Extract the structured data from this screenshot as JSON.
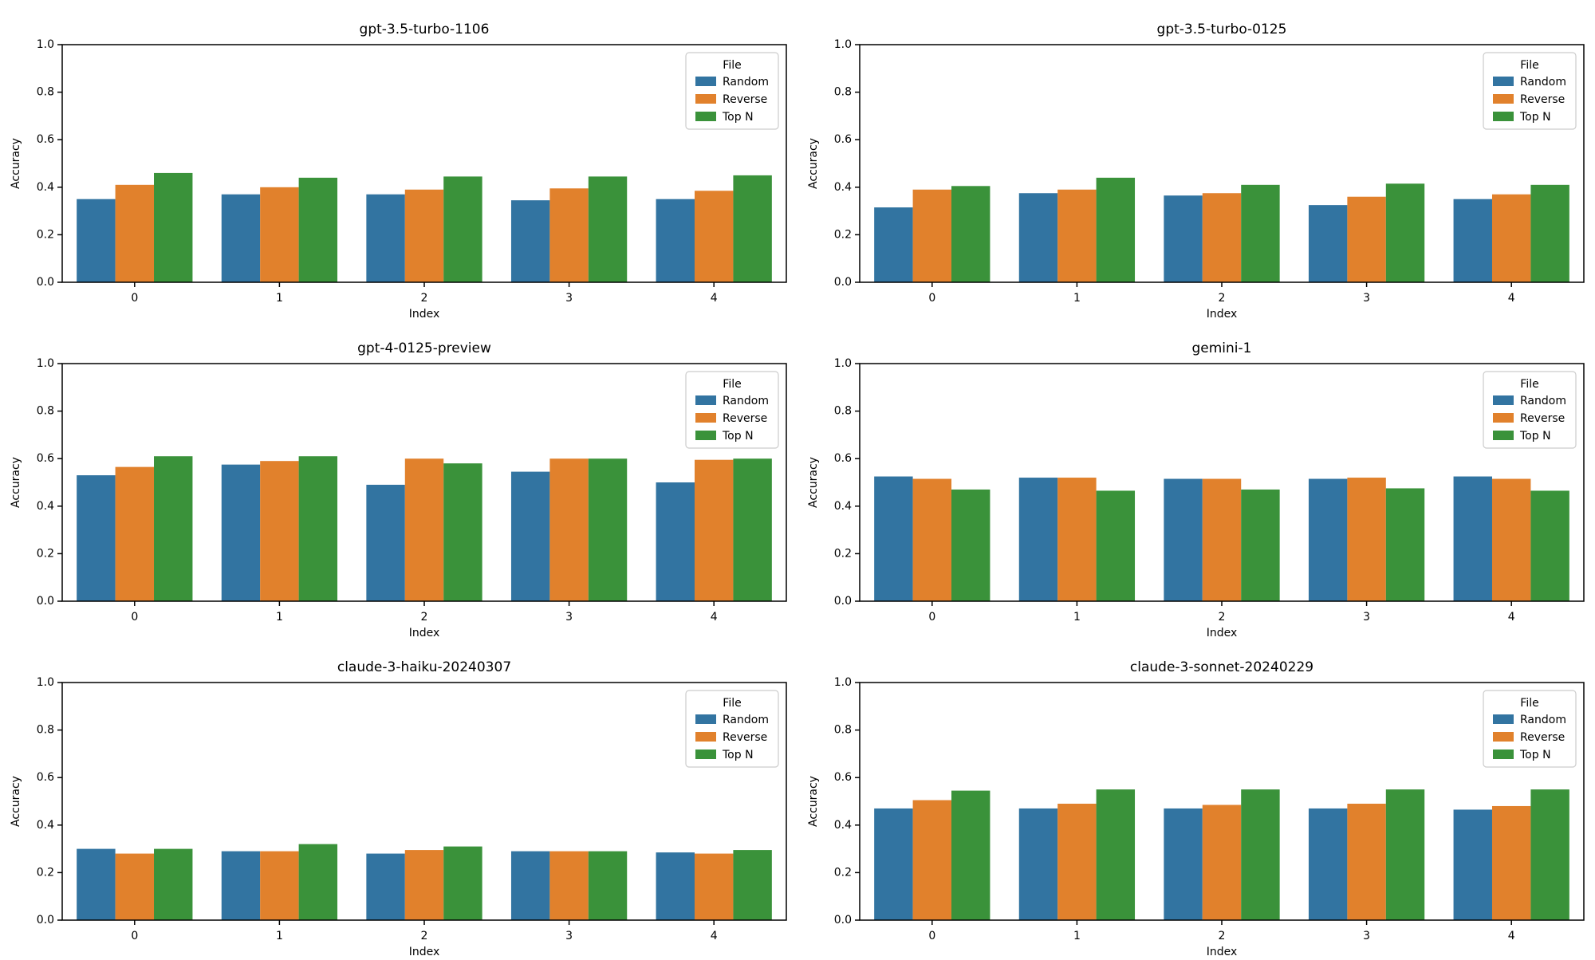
{
  "figure": {
    "background": "#ffffff",
    "rows": 3,
    "cols": 2
  },
  "colors": {
    "random": "#3274a1",
    "reverse": "#e1812c",
    "top_n": "#3a923a",
    "legend_border": "#cccccc",
    "axes": "#000000"
  },
  "ticks": {
    "yticklabels": [
      "0.0",
      "0.2",
      "0.4",
      "0.6",
      "0.8",
      "1.0"
    ],
    "xticklabels": [
      "0",
      "1",
      "2",
      "3",
      "4"
    ]
  },
  "chart_data": [
    {
      "type": "bar",
      "title": "gpt-3.5-turbo-1106",
      "xlabel": "Index",
      "ylabel": "Accuracy",
      "legend_title": "File",
      "legend_position": "upper right",
      "ylim": [
        0.0,
        1.0
      ],
      "grid": false,
      "categories": [
        0,
        1,
        2,
        3,
        4
      ],
      "series": [
        {
          "name": "Random",
          "color": "#3274a1",
          "values": [
            0.35,
            0.37,
            0.37,
            0.345,
            0.35
          ]
        },
        {
          "name": "Reverse",
          "color": "#e1812c",
          "values": [
            0.41,
            0.4,
            0.39,
            0.395,
            0.385
          ]
        },
        {
          "name": "Top N",
          "color": "#3a923a",
          "values": [
            0.46,
            0.44,
            0.445,
            0.445,
            0.45
          ]
        }
      ]
    },
    {
      "type": "bar",
      "title": "gpt-3.5-turbo-0125",
      "xlabel": "Index",
      "ylabel": "Accuracy",
      "legend_title": "File",
      "legend_position": "upper right",
      "ylim": [
        0.0,
        1.0
      ],
      "grid": false,
      "categories": [
        0,
        1,
        2,
        3,
        4
      ],
      "series": [
        {
          "name": "Random",
          "color": "#3274a1",
          "values": [
            0.315,
            0.375,
            0.365,
            0.325,
            0.35
          ]
        },
        {
          "name": "Reverse",
          "color": "#e1812c",
          "values": [
            0.39,
            0.39,
            0.375,
            0.36,
            0.37
          ]
        },
        {
          "name": "Top N",
          "color": "#3a923a",
          "values": [
            0.405,
            0.44,
            0.41,
            0.415,
            0.41
          ]
        }
      ]
    },
    {
      "type": "bar",
      "title": "gpt-4-0125-preview",
      "xlabel": "Index",
      "ylabel": "Accuracy",
      "legend_title": "File",
      "legend_position": "upper right",
      "ylim": [
        0.0,
        1.0
      ],
      "grid": false,
      "categories": [
        0,
        1,
        2,
        3,
        4
      ],
      "series": [
        {
          "name": "Random",
          "color": "#3274a1",
          "values": [
            0.53,
            0.575,
            0.49,
            0.545,
            0.5
          ]
        },
        {
          "name": "Reverse",
          "color": "#e1812c",
          "values": [
            0.565,
            0.59,
            0.6,
            0.6,
            0.595
          ]
        },
        {
          "name": "Top N",
          "color": "#3a923a",
          "values": [
            0.61,
            0.61,
            0.58,
            0.6,
            0.6
          ]
        }
      ]
    },
    {
      "type": "bar",
      "title": "gemini-1",
      "xlabel": "Index",
      "ylabel": "Accuracy",
      "legend_title": "File",
      "legend_position": "upper right",
      "ylim": [
        0.0,
        1.0
      ],
      "grid": false,
      "categories": [
        0,
        1,
        2,
        3,
        4
      ],
      "series": [
        {
          "name": "Random",
          "color": "#3274a1",
          "values": [
            0.525,
            0.52,
            0.515,
            0.515,
            0.525
          ]
        },
        {
          "name": "Reverse",
          "color": "#e1812c",
          "values": [
            0.515,
            0.52,
            0.515,
            0.52,
            0.515
          ]
        },
        {
          "name": "Top N",
          "color": "#3a923a",
          "values": [
            0.47,
            0.465,
            0.47,
            0.475,
            0.465
          ]
        }
      ]
    },
    {
      "type": "bar",
      "title": "claude-3-haiku-20240307",
      "xlabel": "Index",
      "ylabel": "Accuracy",
      "legend_title": "File",
      "legend_position": "upper right",
      "ylim": [
        0.0,
        1.0
      ],
      "grid": false,
      "categories": [
        0,
        1,
        2,
        3,
        4
      ],
      "series": [
        {
          "name": "Random",
          "color": "#3274a1",
          "values": [
            0.3,
            0.29,
            0.28,
            0.29,
            0.285
          ]
        },
        {
          "name": "Reverse",
          "color": "#e1812c",
          "values": [
            0.28,
            0.29,
            0.295,
            0.29,
            0.28
          ]
        },
        {
          "name": "Top N",
          "color": "#3a923a",
          "values": [
            0.3,
            0.32,
            0.31,
            0.29,
            0.295
          ]
        }
      ]
    },
    {
      "type": "bar",
      "title": "claude-3-sonnet-20240229",
      "xlabel": "Index",
      "ylabel": "Accuracy",
      "legend_title": "File",
      "legend_position": "upper right",
      "ylim": [
        0.0,
        1.0
      ],
      "grid": false,
      "categories": [
        0,
        1,
        2,
        3,
        4
      ],
      "series": [
        {
          "name": "Random",
          "color": "#3274a1",
          "values": [
            0.47,
            0.47,
            0.47,
            0.47,
            0.465
          ]
        },
        {
          "name": "Reverse",
          "color": "#e1812c",
          "values": [
            0.505,
            0.49,
            0.485,
            0.49,
            0.48
          ]
        },
        {
          "name": "Top N",
          "color": "#3a923a",
          "values": [
            0.545,
            0.55,
            0.55,
            0.55,
            0.55
          ]
        }
      ]
    }
  ]
}
